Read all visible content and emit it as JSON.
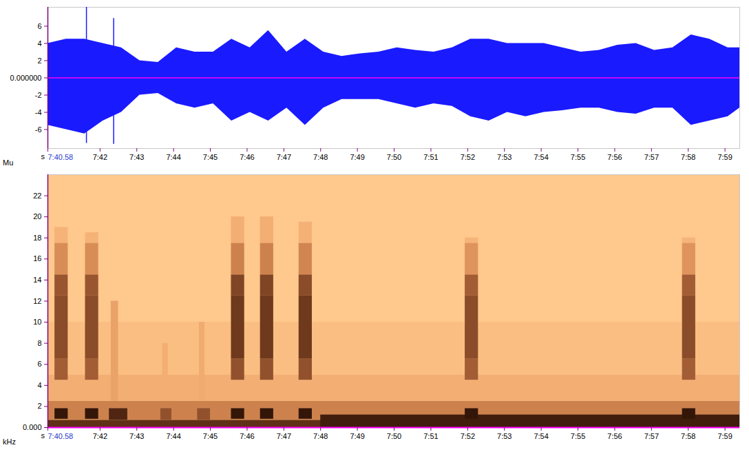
{
  "chart_data": [
    {
      "type": "area",
      "xlabel": "s",
      "ylabel": "Mu",
      "color": "#1a1aff",
      "x": [
        460.58,
        461.08,
        461.58,
        462.08,
        462.58,
        463.08,
        463.58,
        464.08,
        464.58,
        465.08,
        465.58,
        466.08,
        466.58,
        467.08,
        467.58,
        468.08,
        468.58,
        469.08,
        469.58,
        470.08,
        470.58,
        471.08,
        471.58,
        472.08,
        472.58,
        473.08,
        473.58,
        474.08,
        474.58,
        475.08,
        475.58,
        476.08,
        476.58,
        477.08,
        477.58,
        478.08,
        478.58,
        479.08,
        479.4
      ],
      "upper": [
        4,
        4.5,
        4.5,
        4,
        3.5,
        2,
        1.8,
        3.5,
        3,
        3,
        4.5,
        3.5,
        5.5,
        3,
        4.5,
        3,
        2.5,
        2.8,
        3,
        3.5,
        3.2,
        3,
        3.5,
        4.5,
        4.5,
        4,
        4,
        4,
        3.5,
        3,
        3.2,
        3.8,
        4,
        3.2,
        3.5,
        5,
        4.5,
        3.5,
        3.5
      ],
      "lower": [
        -5.5,
        -6,
        -6.5,
        -5,
        -4,
        -2,
        -1.8,
        -3,
        -3.5,
        -3,
        -5,
        -4,
        -5,
        -3.5,
        -5.5,
        -3.5,
        -2.5,
        -2.5,
        -2.5,
        -3,
        -3.5,
        -3,
        -3.3,
        -4.5,
        -5,
        -4,
        -4.5,
        -4,
        -3.8,
        -3.5,
        -3.5,
        -4,
        -4.2,
        -3.5,
        -3.5,
        -5.5,
        -5,
        -4.5,
        -3.5
      ],
      "spikes": [
        [
          461.63,
          -7.6,
          8.2
        ],
        [
          462.37,
          -7.7,
          6.9
        ]
      ],
      "xlim": [
        460.58,
        479.4
      ],
      "xticks": [
        {
          "value": 460.58,
          "label": "7:40.58"
        },
        {
          "value": 462,
          "label": "7:42"
        },
        {
          "value": 463,
          "label": "7:43"
        },
        {
          "value": 464,
          "label": "7:44"
        },
        {
          "value": 465,
          "label": "7:45"
        },
        {
          "value": 466,
          "label": "7:46"
        },
        {
          "value": 467,
          "label": "7:47"
        },
        {
          "value": 468,
          "label": "7:48"
        },
        {
          "value": 469,
          "label": "7:49"
        },
        {
          "value": 470,
          "label": "7:50"
        },
        {
          "value": 471,
          "label": "7:51"
        },
        {
          "value": 472,
          "label": "7:52"
        },
        {
          "value": 473,
          "label": "7:53"
        },
        {
          "value": 474,
          "label": "7:54"
        },
        {
          "value": 475,
          "label": "7:55"
        },
        {
          "value": 476,
          "label": "7:56"
        },
        {
          "value": 477,
          "label": "7:57"
        },
        {
          "value": 478,
          "label": "7:58"
        },
        {
          "value": 479,
          "label": "7:59"
        }
      ],
      "ylim": [
        -8.2,
        8.2
      ],
      "yticks": [
        6,
        4,
        2,
        {
          "value": 0,
          "label": "0.000000"
        },
        -2,
        -4,
        -6
      ]
    },
    {
      "type": "heatmap",
      "xlabel": "s",
      "ylabel": "kHz",
      "zlim": [
        0,
        1
      ],
      "cells": [
        [
          460.58,
          479.4,
          0,
          0.7,
          0.75
        ],
        [
          460.58,
          479.4,
          0.7,
          2.5,
          0.4
        ],
        [
          460.58,
          479.4,
          2.5,
          5,
          0.18
        ],
        [
          460.58,
          479.4,
          5,
          10,
          0.07
        ],
        [
          468,
          479.4,
          0,
          1.2,
          0.85
        ],
        [
          462.25,
          462.75,
          0.7,
          1.8,
          0.8
        ],
        [
          463.65,
          463.95,
          0.7,
          1.8,
          0.6
        ],
        [
          464.65,
          465.0,
          0.7,
          1.8,
          0.6
        ],
        [
          462.3,
          462.5,
          2.5,
          12,
          0.25
        ],
        [
          463.7,
          463.85,
          2.5,
          8,
          0.18
        ],
        [
          464.7,
          464.85,
          2.5,
          10,
          0.2
        ],
        [
          460.77,
          461.13,
          0.8,
          1.8,
          0.9
        ],
        [
          460.77,
          461.13,
          4.5,
          6.5,
          0.55
        ],
        [
          460.77,
          461.13,
          6.5,
          12.5,
          0.62
        ],
        [
          460.77,
          461.13,
          12.5,
          14.5,
          0.58
        ],
        [
          460.77,
          461.13,
          14.5,
          17.5,
          0.35
        ],
        [
          460.77,
          461.13,
          17.5,
          19,
          0.15
        ],
        [
          461.6,
          461.96,
          0.8,
          1.8,
          0.9
        ],
        [
          461.6,
          461.96,
          4.5,
          6.5,
          0.55
        ],
        [
          461.6,
          461.96,
          6.5,
          12.5,
          0.62
        ],
        [
          461.6,
          461.96,
          12.5,
          14.5,
          0.58
        ],
        [
          461.6,
          461.96,
          14.5,
          17.5,
          0.35
        ],
        [
          461.6,
          461.96,
          17.5,
          18.5,
          0.15
        ],
        [
          465.57,
          465.93,
          0.8,
          1.8,
          0.9
        ],
        [
          465.57,
          465.93,
          4.5,
          6.5,
          0.6
        ],
        [
          465.57,
          465.93,
          6.5,
          12.5,
          0.7
        ],
        [
          465.57,
          465.93,
          12.5,
          14.5,
          0.65
        ],
        [
          465.57,
          465.93,
          14.5,
          17.5,
          0.4
        ],
        [
          465.57,
          465.93,
          17.5,
          20,
          0.18
        ],
        [
          466.36,
          466.72,
          0.8,
          1.8,
          0.9
        ],
        [
          466.36,
          466.72,
          4.5,
          6.5,
          0.6
        ],
        [
          466.36,
          466.72,
          6.5,
          12.5,
          0.7
        ],
        [
          466.36,
          466.72,
          12.5,
          14.5,
          0.65
        ],
        [
          466.36,
          466.72,
          14.5,
          17.5,
          0.4
        ],
        [
          466.36,
          466.72,
          17.5,
          20,
          0.18
        ],
        [
          467.41,
          467.77,
          0.8,
          1.8,
          0.9
        ],
        [
          467.41,
          467.77,
          4.5,
          6.5,
          0.6
        ],
        [
          467.41,
          467.77,
          6.5,
          12.5,
          0.7
        ],
        [
          467.41,
          467.77,
          12.5,
          14.5,
          0.62
        ],
        [
          467.41,
          467.77,
          14.5,
          17.5,
          0.38
        ],
        [
          467.41,
          467.77,
          17.5,
          19.5,
          0.16
        ],
        [
          471.93,
          472.29,
          0.8,
          1.8,
          0.9
        ],
        [
          471.93,
          472.29,
          4.5,
          6.5,
          0.55
        ],
        [
          471.93,
          472.29,
          6.5,
          12.5,
          0.62
        ],
        [
          471.93,
          472.29,
          12.5,
          14.5,
          0.55
        ],
        [
          471.93,
          472.29,
          14.5,
          17.5,
          0.32
        ],
        [
          471.93,
          472.29,
          17.5,
          18,
          0.14
        ],
        [
          477.84,
          478.2,
          0.8,
          1.8,
          0.9
        ],
        [
          477.84,
          478.2,
          4.5,
          6.5,
          0.55
        ],
        [
          477.84,
          478.2,
          6.5,
          12.5,
          0.62
        ],
        [
          477.84,
          478.2,
          12.5,
          14.5,
          0.55
        ],
        [
          477.84,
          478.2,
          14.5,
          17.5,
          0.32
        ],
        [
          477.84,
          478.2,
          17.5,
          18,
          0.14
        ]
      ],
      "xlim": [
        460.58,
        479.4
      ],
      "xticks": [
        {
          "value": 460.58,
          "label": "7:40.58"
        },
        {
          "value": 462,
          "label": "7:42"
        },
        {
          "value": 463,
          "label": "7:43"
        },
        {
          "value": 464,
          "label": "7:44"
        },
        {
          "value": 465,
          "label": "7:45"
        },
        {
          "value": 466,
          "label": "7:46"
        },
        {
          "value": 467,
          "label": "7:47"
        },
        {
          "value": 468,
          "label": "7:48"
        },
        {
          "value": 469,
          "label": "7:49"
        },
        {
          "value": 470,
          "label": "7:50"
        },
        {
          "value": 471,
          "label": "7:51"
        },
        {
          "value": 472,
          "label": "7:52"
        },
        {
          "value": 473,
          "label": "7:53"
        },
        {
          "value": 474,
          "label": "7:54"
        },
        {
          "value": 475,
          "label": "7:55"
        },
        {
          "value": 476,
          "label": "7:56"
        },
        {
          "value": 477,
          "label": "7:57"
        },
        {
          "value": 478,
          "label": "7:58"
        },
        {
          "value": 479,
          "label": "7:59"
        }
      ],
      "ylim": [
        0,
        24
      ],
      "yticks": [
        {
          "value": 0,
          "label": "0.000"
        },
        2,
        4,
        6,
        8,
        10,
        12,
        14,
        16,
        18,
        20,
        22
      ]
    }
  ]
}
